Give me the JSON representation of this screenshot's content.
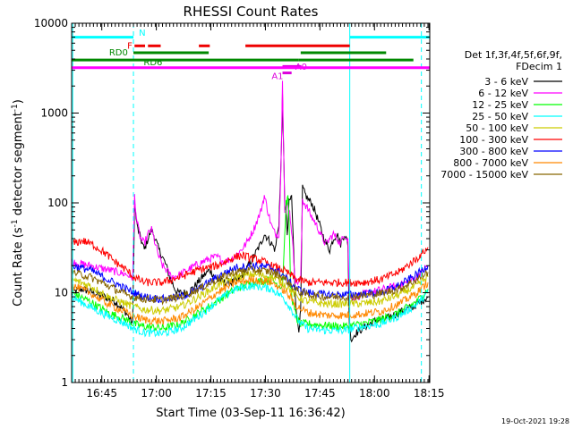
{
  "chart_data": {
    "type": "line",
    "title": "RHESSI Count Rates",
    "xlabel": "Start Time (03-Sep-11 16:36:42)",
    "ylabel_parts": [
      "Count Rate (s",
      "-1",
      " detector segment",
      "-1",
      ")"
    ],
    "yscale": "log",
    "ylim": [
      1,
      10000
    ],
    "xlim_minutes": [
      0,
      98.5
    ],
    "x_ticks": [
      {
        "label": "16:45",
        "t": 8.3
      },
      {
        "label": "17:00",
        "t": 23.3
      },
      {
        "label": "17:15",
        "t": 38.3
      },
      {
        "label": "17:30",
        "t": 53.3
      },
      {
        "label": "17:45",
        "t": 68.3
      },
      {
        "label": "18:00",
        "t": 83.3
      },
      {
        "label": "18:15",
        "t": 98.3
      }
    ],
    "y_ticks": [
      {
        "label": "1",
        "v": 1
      },
      {
        "label": "10",
        "v": 10
      },
      {
        "label": "100",
        "v": 100
      },
      {
        "label": "1000",
        "v": 1000
      },
      {
        "label": "10000",
        "v": 10000
      }
    ],
    "vlines": [
      {
        "t": 0.3,
        "color": "#00ffff",
        "style": "solid"
      },
      {
        "t": 17.0,
        "color": "#00ffff",
        "style": "dashed"
      },
      {
        "t": 76.5,
        "color": "#00ffff",
        "style": "solid"
      },
      {
        "t": 96.2,
        "color": "#00ffff",
        "style": "dashed"
      }
    ],
    "flag_bars": [
      {
        "name": "N",
        "color": "#00ffff",
        "segments": [
          [
            0,
            17.0
          ],
          [
            76.5,
            98.5
          ]
        ],
        "level": 7000,
        "label_t": 18.5,
        "label_v": 7800,
        "label_color": "#00ffff"
      },
      {
        "name": "F",
        "color": "#ee0000",
        "dashed_segments": [
          [
            17.3,
            20.2
          ],
          [
            21.0,
            24.5
          ],
          [
            35.0,
            38.0
          ]
        ],
        "segments": [
          [
            47.8,
            76.5
          ]
        ],
        "level": 5600,
        "label_t": 15.3,
        "label_v": 5600,
        "label_color": "#ee0000"
      },
      {
        "name": "RD0",
        "color": "#008800",
        "segments": [
          [
            17.0,
            37.7
          ],
          [
            63.0,
            86.5
          ]
        ],
        "level": 4700,
        "label_t": 10.3,
        "label_v": 4700,
        "label_color": "#008800"
      },
      {
        "name": "RD6",
        "color": "#008800",
        "segments": [
          [
            0,
            62.5
          ],
          [
            62.5,
            94.0
          ]
        ],
        "level": 3900,
        "label_t": 19.8,
        "label_v": 3650,
        "label_color": "#008800"
      },
      {
        "name": "A0",
        "color": "#dd00dd",
        "segments": [
          [
            58.0,
            63.2
          ]
        ],
        "level": 3300,
        "label_t": 61.5,
        "label_v": 3250,
        "label_color": "#dd00dd"
      },
      {
        "name": "A1",
        "color": "#dd00dd",
        "segments": [
          [
            58.0,
            60.5
          ]
        ],
        "level": 2800,
        "label_t": 55.0,
        "label_v": 2550,
        "label_color": "#dd00dd"
      },
      {
        "name": "ATT",
        "color": "#ff00ff",
        "segments": [
          [
            0,
            98.5
          ]
        ],
        "level": 3200,
        "label_t": 0,
        "label_v": 0,
        "label_color": "#ff00ff"
      }
    ],
    "legend": {
      "header": [
        "Det 1f,3f,4f,5f,6f,9f,",
        "FDecim 1"
      ],
      "entries": [
        {
          "label": "3 - 6 keV",
          "color": "#000000"
        },
        {
          "label": "6 - 12 keV",
          "color": "#ff00ff"
        },
        {
          "label": "12 - 25 keV",
          "color": "#00ff00"
        },
        {
          "label": "25 - 50 keV",
          "color": "#00ffff"
        },
        {
          "label": "50 - 100 keV",
          "color": "#cccc00"
        },
        {
          "label": "100 - 300 keV",
          "color": "#ff0000"
        },
        {
          "label": "300 - 800 keV",
          "color": "#0000ff"
        },
        {
          "label": "800 - 7000 keV",
          "color": "#ff8800"
        },
        {
          "label": "7000 - 15000 keV",
          "color": "#886600"
        }
      ]
    },
    "series": [
      {
        "name": "3 - 6 keV",
        "color": "#000000",
        "t": [
          0,
          3,
          6,
          9,
          12,
          15,
          16.8,
          17.3,
          18,
          19,
          20,
          21,
          22,
          23,
          24,
          25,
          26,
          27,
          28,
          29,
          30,
          32,
          34,
          36,
          38,
          40,
          42,
          44,
          46,
          48,
          50,
          52,
          53,
          54,
          55,
          56,
          57,
          57.5,
          58,
          58.6,
          59,
          59.3,
          59.8,
          60.5,
          61.5,
          62,
          62.5,
          63,
          63.5,
          64,
          65,
          66,
          67,
          68,
          69,
          70,
          71,
          72,
          73,
          74,
          75,
          76,
          76.4,
          77,
          78,
          80,
          82,
          84,
          86,
          88,
          90,
          92,
          94,
          96,
          98
        ],
        "v": [
          10,
          11,
          10,
          9,
          8,
          6,
          4.5,
          100,
          55,
          40,
          30,
          40,
          50,
          40,
          30,
          25,
          20,
          15,
          12,
          10,
          10,
          10,
          12,
          15,
          18,
          14,
          13,
          13,
          14,
          18,
          25,
          35,
          45,
          40,
          35,
          30,
          60,
          200,
          1500,
          100,
          80,
          40,
          100,
          120,
          10,
          5,
          4,
          6,
          150,
          130,
          110,
          100,
          80,
          60,
          45,
          35,
          30,
          40,
          45,
          35,
          45,
          35,
          4,
          3,
          3.5,
          4,
          4.5,
          5,
          5,
          5.5,
          6,
          6.5,
          7,
          8,
          9
        ]
      },
      {
        "name": "6 - 12 keV",
        "color": "#ff00ff",
        "t": [
          0,
          5,
          10,
          15,
          16.8,
          17.3,
          18,
          19,
          20,
          21,
          22,
          23,
          24,
          25,
          26,
          27,
          28,
          30,
          32,
          34,
          36,
          38,
          40,
          42,
          44,
          46,
          48,
          50,
          52,
          53,
          54,
          55,
          56,
          57,
          57.5,
          58,
          58.6,
          59,
          59.3,
          59.8,
          60.5,
          61.5,
          62,
          63,
          63.5,
          64,
          65,
          66,
          67,
          68,
          69,
          70,
          72,
          73,
          74,
          75,
          76,
          76.4,
          78,
          82,
          86,
          90,
          94,
          98
        ],
        "v": [
          22,
          20,
          18,
          16,
          15,
          120,
          60,
          40,
          35,
          45,
          50,
          35,
          25,
          20,
          18,
          16,
          15,
          16,
          18,
          20,
          22,
          24,
          25,
          22,
          24,
          28,
          35,
          50,
          80,
          120,
          80,
          55,
          45,
          45,
          180,
          2500,
          80,
          70,
          100,
          90,
          50,
          14,
          13,
          14,
          110,
          100,
          85,
          70,
          60,
          50,
          40,
          35,
          45,
          40,
          35,
          45,
          40,
          9,
          9,
          10,
          11,
          12,
          14,
          20
        ]
      },
      {
        "name": "12 - 25 keV",
        "color": "#00ff00",
        "t": [
          0,
          5,
          10,
          15,
          17,
          20,
          25,
          30,
          35,
          40,
          45,
          50,
          55,
          56,
          57,
          58,
          59,
          59.5,
          59.8,
          60.2,
          60.8,
          61.5,
          62,
          63,
          65,
          70,
          75,
          80,
          85,
          90,
          95,
          98
        ],
        "v": [
          10,
          8,
          6,
          5,
          4.5,
          4.2,
          4,
          4.5,
          6,
          8,
          11,
          13,
          14,
          13,
          12,
          12,
          100,
          110,
          70,
          12,
          8,
          6,
          5,
          4.5,
          4.5,
          4.3,
          4.2,
          4.5,
          5,
          6,
          8,
          11
        ]
      },
      {
        "name": "25 - 50 keV",
        "color": "#00ffff",
        "t": [
          0,
          5,
          10,
          15,
          17,
          20,
          25,
          30,
          35,
          40,
          45,
          50,
          55,
          58,
          60,
          61.5,
          63,
          65,
          70,
          75,
          80,
          85,
          90,
          95,
          98
        ],
        "v": [
          9,
          7,
          5.5,
          4.5,
          4,
          3.6,
          3.5,
          4,
          5.5,
          8,
          11,
          12,
          11,
          9,
          7,
          5.5,
          4.5,
          4,
          3.8,
          3.8,
          4.2,
          4.5,
          5.5,
          7.5,
          10
        ]
      },
      {
        "name": "50 - 100 keV",
        "color": "#cccc00",
        "t": [
          0,
          5,
          10,
          15,
          17,
          20,
          25,
          30,
          35,
          40,
          45,
          50,
          55,
          58,
          60,
          62,
          65,
          70,
          75,
          80,
          85,
          90,
          95,
          98
        ],
        "v": [
          14,
          12,
          9,
          7.5,
          7,
          6.5,
          6.3,
          7,
          9,
          12,
          15,
          16,
          15,
          13,
          11,
          9,
          8,
          7.5,
          7.5,
          7.6,
          8,
          9.5,
          12,
          15
        ]
      },
      {
        "name": "100 - 300 keV",
        "color": "#ff0000",
        "t": [
          0,
          3,
          6,
          9,
          12,
          15,
          17,
          20,
          25,
          30,
          35,
          40,
          45,
          47,
          50,
          53,
          55,
          58,
          60,
          62,
          65,
          70,
          75,
          80,
          85,
          90,
          95,
          98
        ],
        "v": [
          35,
          38,
          34,
          28,
          22,
          18,
          15,
          13,
          13,
          15,
          18,
          20,
          25,
          26,
          24,
          22,
          20,
          18,
          16,
          14,
          13,
          13,
          13,
          13,
          14,
          17,
          24,
          32
        ]
      },
      {
        "name": "300 - 800 keV",
        "color": "#0000ff",
        "t": [
          0,
          5,
          10,
          15,
          17,
          20,
          25,
          30,
          35,
          40,
          45,
          50,
          55,
          58,
          60,
          62,
          65,
          70,
          75,
          80,
          85,
          90,
          95,
          98
        ],
        "v": [
          20,
          18,
          14,
          11,
          10,
          9,
          8.5,
          9,
          11,
          15,
          19,
          20,
          19,
          16,
          13,
          11,
          10,
          9.5,
          9.5,
          9.7,
          10,
          12,
          16,
          20
        ]
      },
      {
        "name": "800 - 7000 keV",
        "color": "#ff8800",
        "t": [
          0,
          5,
          10,
          15,
          17,
          20,
          25,
          30,
          35,
          40,
          45,
          50,
          55,
          58,
          60,
          62,
          65,
          70,
          75,
          80,
          85,
          90,
          95,
          98
        ],
        "v": [
          12,
          10,
          7.5,
          6,
          5.5,
          5,
          4.8,
          5.3,
          7,
          10,
          13,
          14,
          13,
          11,
          9,
          7,
          6,
          5.6,
          5.6,
          5.8,
          6.2,
          7.5,
          10,
          13
        ]
      },
      {
        "name": "7000 - 15000 keV",
        "color": "#886600",
        "t": [
          0,
          5,
          10,
          15,
          17,
          20,
          25,
          30,
          35,
          40,
          45,
          50,
          55,
          58,
          60,
          62,
          65,
          70,
          75,
          80,
          85,
          90,
          95,
          98
        ],
        "v": [
          17,
          15,
          12,
          9.5,
          9,
          8.5,
          8.3,
          9,
          11,
          14,
          17,
          18,
          17,
          15,
          12.5,
          10.5,
          9.5,
          9,
          9,
          9.2,
          9.8,
          11,
          14,
          17
        ]
      }
    ]
  },
  "footer": {
    "timestamp": "19-Oct-2021 19:28"
  }
}
